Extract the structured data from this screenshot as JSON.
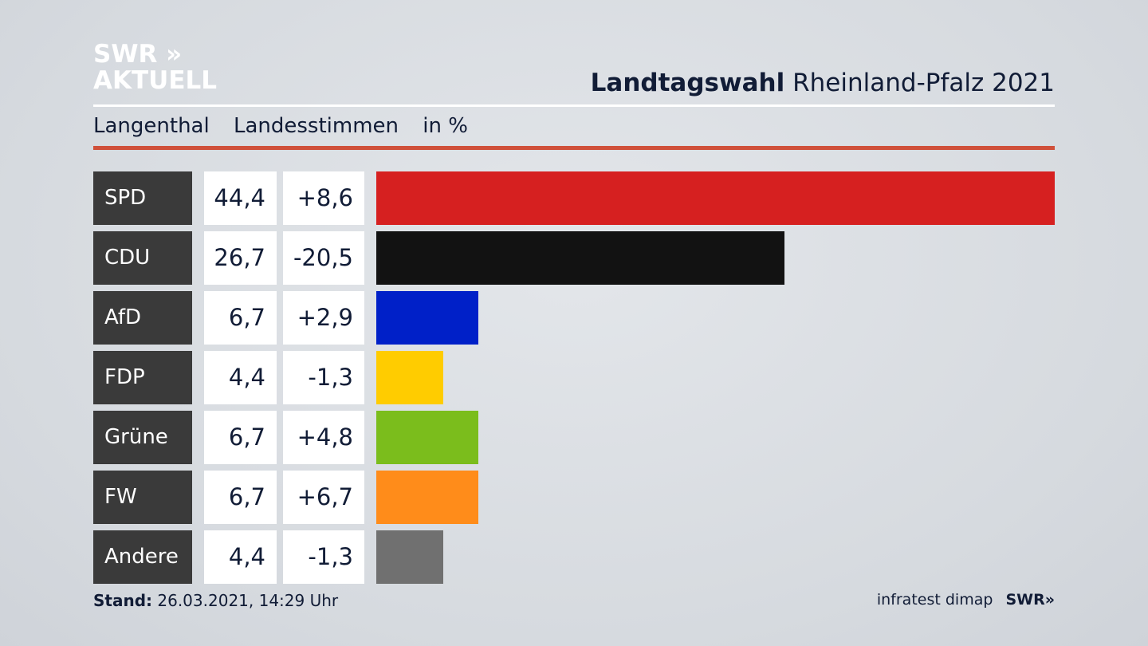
{
  "logo": {
    "line1": "SWR »",
    "line2": "AKTUELL"
  },
  "header": {
    "title_bold": "Landtagswahl",
    "title_rest": "Rheinland-Pfalz 2021"
  },
  "subtitle": {
    "place": "Langenthal",
    "type": "Landesstimmen",
    "unit": "in %"
  },
  "chart_data": {
    "type": "bar",
    "orientation": "horizontal",
    "title": "Landtagswahl Rheinland-Pfalz 2021 – Langenthal Landesstimmen in %",
    "categories": [
      "SPD",
      "CDU",
      "AfD",
      "FDP",
      "Grüne",
      "FW",
      "Andere"
    ],
    "values": [
      44.4,
      26.7,
      6.7,
      4.4,
      6.7,
      6.7,
      4.4
    ],
    "value_labels": [
      "44,4",
      "26,7",
      "6,7",
      "4,4",
      "6,7",
      "6,7",
      "4,4"
    ],
    "changes": [
      8.6,
      -20.5,
      2.9,
      -1.3,
      4.8,
      6.7,
      -1.3
    ],
    "change_labels": [
      "+8,6",
      "-20,5",
      "+2,9",
      "-1,3",
      "+4,8",
      "+6,7",
      "-1,3"
    ],
    "colors": [
      "#d62020",
      "#121212",
      "#0020c8",
      "#ffcc00",
      "#7bbd1c",
      "#ff8c1a",
      "#707070"
    ],
    "xlim": [
      0,
      44.4
    ]
  },
  "footer": {
    "stand_label": "Stand:",
    "stand_value": "26.03.2021, 14:29 Uhr",
    "source": "infratest dimap",
    "source_logo": "SWR»"
  }
}
